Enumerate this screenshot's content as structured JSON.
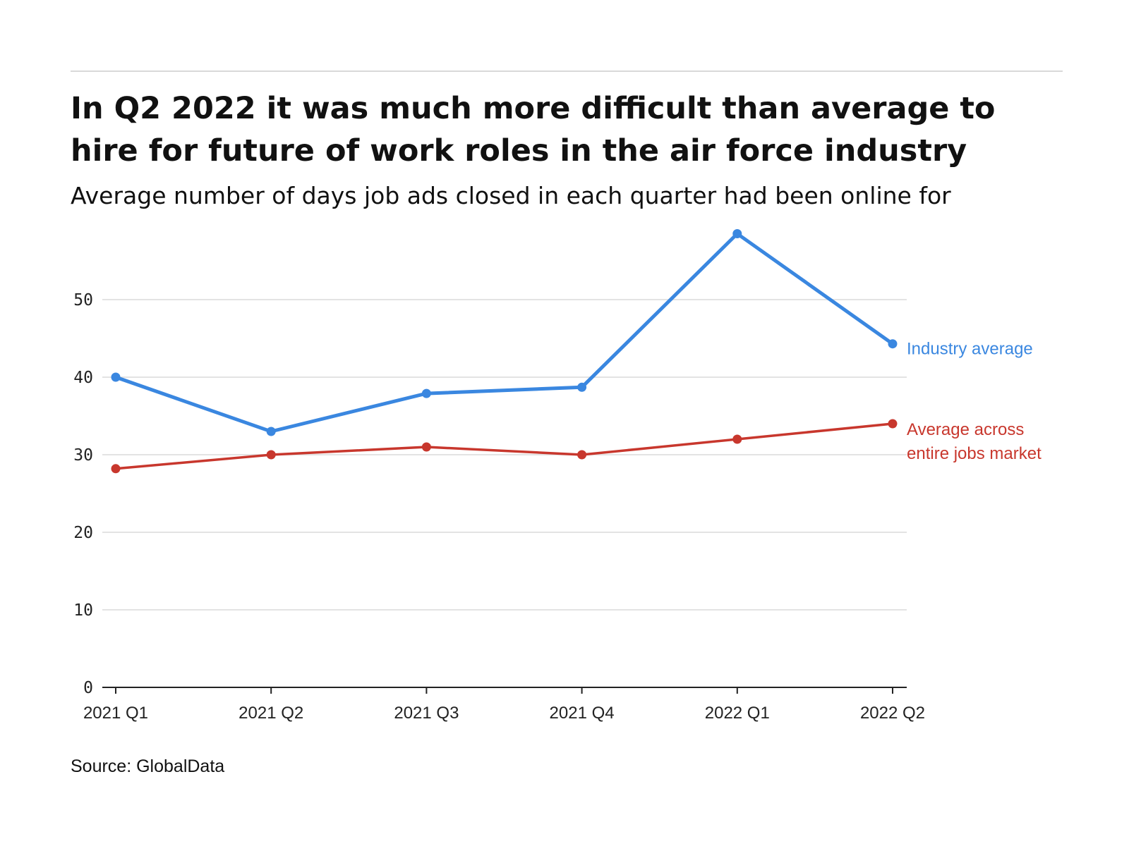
{
  "header": {
    "title": "In Q2 2022 it was much more difficult than average to hire for future of work roles in the air force industry",
    "subtitle": "Average number of days job ads closed in each quarter had been online for"
  },
  "footer": {
    "source": "Source: GlobalData"
  },
  "chart_data": {
    "type": "line",
    "title": "In Q2 2022 it was much more difficult than average to hire for future of work roles in the air force industry",
    "subtitle": "Average number of days job ads closed in each quarter had been online for",
    "categories": [
      "2021 Q1",
      "2021 Q2",
      "2021 Q3",
      "2021 Q4",
      "2022 Q1",
      "2022 Q2"
    ],
    "series": [
      {
        "name": "Industry average",
        "label_lines": [
          "Industry average"
        ],
        "color": "#3a87e0",
        "values": [
          40,
          33,
          37.9,
          38.7,
          58.5,
          44.3
        ]
      },
      {
        "name": "Average across entire jobs market",
        "label_lines": [
          "Average across",
          "entire jobs market"
        ],
        "color": "#c8372d",
        "values": [
          28.2,
          30,
          31,
          30,
          32,
          34
        ]
      }
    ],
    "ylim": [
      0,
      60
    ],
    "yticks": [
      0,
      10,
      20,
      30,
      40,
      50
    ],
    "grid": true,
    "legend": "direct labels at line ends",
    "source": "Source: GlobalData"
  }
}
